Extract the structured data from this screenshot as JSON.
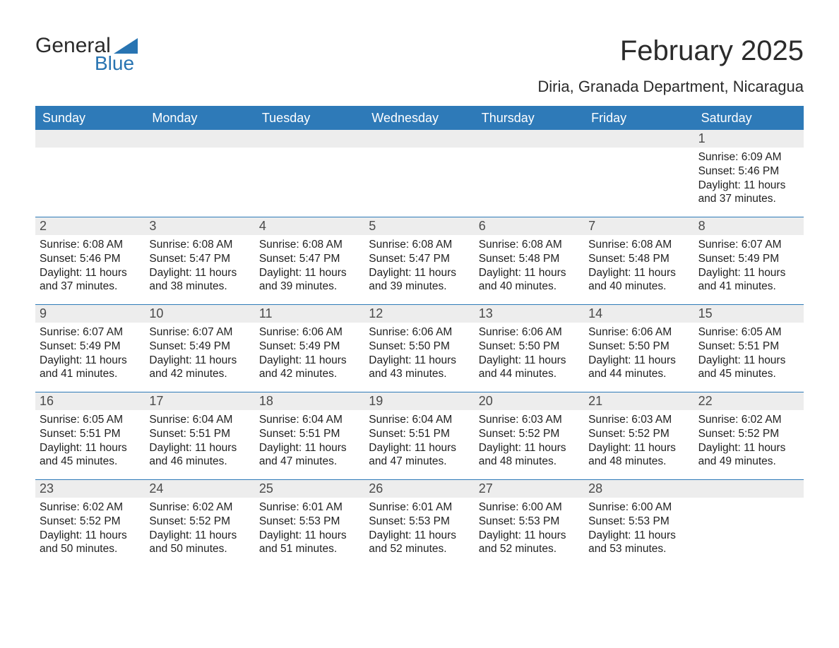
{
  "logo": {
    "word1": "General",
    "word2": "Blue",
    "accent_color": "#2874b2"
  },
  "title": "February 2025",
  "location": "Diria, Granada Department, Nicaragua",
  "colors": {
    "header_bg": "#2e7ab8",
    "header_fg": "#ffffff",
    "band_bg": "#ededed",
    "rule": "#2e7ab8",
    "text": "#212121"
  },
  "days_of_week": [
    "Sunday",
    "Monday",
    "Tuesday",
    "Wednesday",
    "Thursday",
    "Friday",
    "Saturday"
  ],
  "labels": {
    "sunrise": "Sunrise: ",
    "sunset": "Sunset: ",
    "daylight": "Daylight: "
  },
  "weeks": [
    [
      null,
      null,
      null,
      null,
      null,
      null,
      {
        "n": "1",
        "sunrise": "6:09 AM",
        "sunset": "5:46 PM",
        "daylight": "11 hours and 37 minutes."
      }
    ],
    [
      {
        "n": "2",
        "sunrise": "6:08 AM",
        "sunset": "5:46 PM",
        "daylight": "11 hours and 37 minutes."
      },
      {
        "n": "3",
        "sunrise": "6:08 AM",
        "sunset": "5:47 PM",
        "daylight": "11 hours and 38 minutes."
      },
      {
        "n": "4",
        "sunrise": "6:08 AM",
        "sunset": "5:47 PM",
        "daylight": "11 hours and 39 minutes."
      },
      {
        "n": "5",
        "sunrise": "6:08 AM",
        "sunset": "5:47 PM",
        "daylight": "11 hours and 39 minutes."
      },
      {
        "n": "6",
        "sunrise": "6:08 AM",
        "sunset": "5:48 PM",
        "daylight": "11 hours and 40 minutes."
      },
      {
        "n": "7",
        "sunrise": "6:08 AM",
        "sunset": "5:48 PM",
        "daylight": "11 hours and 40 minutes."
      },
      {
        "n": "8",
        "sunrise": "6:07 AM",
        "sunset": "5:49 PM",
        "daylight": "11 hours and 41 minutes."
      }
    ],
    [
      {
        "n": "9",
        "sunrise": "6:07 AM",
        "sunset": "5:49 PM",
        "daylight": "11 hours and 41 minutes."
      },
      {
        "n": "10",
        "sunrise": "6:07 AM",
        "sunset": "5:49 PM",
        "daylight": "11 hours and 42 minutes."
      },
      {
        "n": "11",
        "sunrise": "6:06 AM",
        "sunset": "5:49 PM",
        "daylight": "11 hours and 42 minutes."
      },
      {
        "n": "12",
        "sunrise": "6:06 AM",
        "sunset": "5:50 PM",
        "daylight": "11 hours and 43 minutes."
      },
      {
        "n": "13",
        "sunrise": "6:06 AM",
        "sunset": "5:50 PM",
        "daylight": "11 hours and 44 minutes."
      },
      {
        "n": "14",
        "sunrise": "6:06 AM",
        "sunset": "5:50 PM",
        "daylight": "11 hours and 44 minutes."
      },
      {
        "n": "15",
        "sunrise": "6:05 AM",
        "sunset": "5:51 PM",
        "daylight": "11 hours and 45 minutes."
      }
    ],
    [
      {
        "n": "16",
        "sunrise": "6:05 AM",
        "sunset": "5:51 PM",
        "daylight": "11 hours and 45 minutes."
      },
      {
        "n": "17",
        "sunrise": "6:04 AM",
        "sunset": "5:51 PM",
        "daylight": "11 hours and 46 minutes."
      },
      {
        "n": "18",
        "sunrise": "6:04 AM",
        "sunset": "5:51 PM",
        "daylight": "11 hours and 47 minutes."
      },
      {
        "n": "19",
        "sunrise": "6:04 AM",
        "sunset": "5:51 PM",
        "daylight": "11 hours and 47 minutes."
      },
      {
        "n": "20",
        "sunrise": "6:03 AM",
        "sunset": "5:52 PM",
        "daylight": "11 hours and 48 minutes."
      },
      {
        "n": "21",
        "sunrise": "6:03 AM",
        "sunset": "5:52 PM",
        "daylight": "11 hours and 48 minutes."
      },
      {
        "n": "22",
        "sunrise": "6:02 AM",
        "sunset": "5:52 PM",
        "daylight": "11 hours and 49 minutes."
      }
    ],
    [
      {
        "n": "23",
        "sunrise": "6:02 AM",
        "sunset": "5:52 PM",
        "daylight": "11 hours and 50 minutes."
      },
      {
        "n": "24",
        "sunrise": "6:02 AM",
        "sunset": "5:52 PM",
        "daylight": "11 hours and 50 minutes."
      },
      {
        "n": "25",
        "sunrise": "6:01 AM",
        "sunset": "5:53 PM",
        "daylight": "11 hours and 51 minutes."
      },
      {
        "n": "26",
        "sunrise": "6:01 AM",
        "sunset": "5:53 PM",
        "daylight": "11 hours and 52 minutes."
      },
      {
        "n": "27",
        "sunrise": "6:00 AM",
        "sunset": "5:53 PM",
        "daylight": "11 hours and 52 minutes."
      },
      {
        "n": "28",
        "sunrise": "6:00 AM",
        "sunset": "5:53 PM",
        "daylight": "11 hours and 53 minutes."
      },
      null
    ]
  ]
}
